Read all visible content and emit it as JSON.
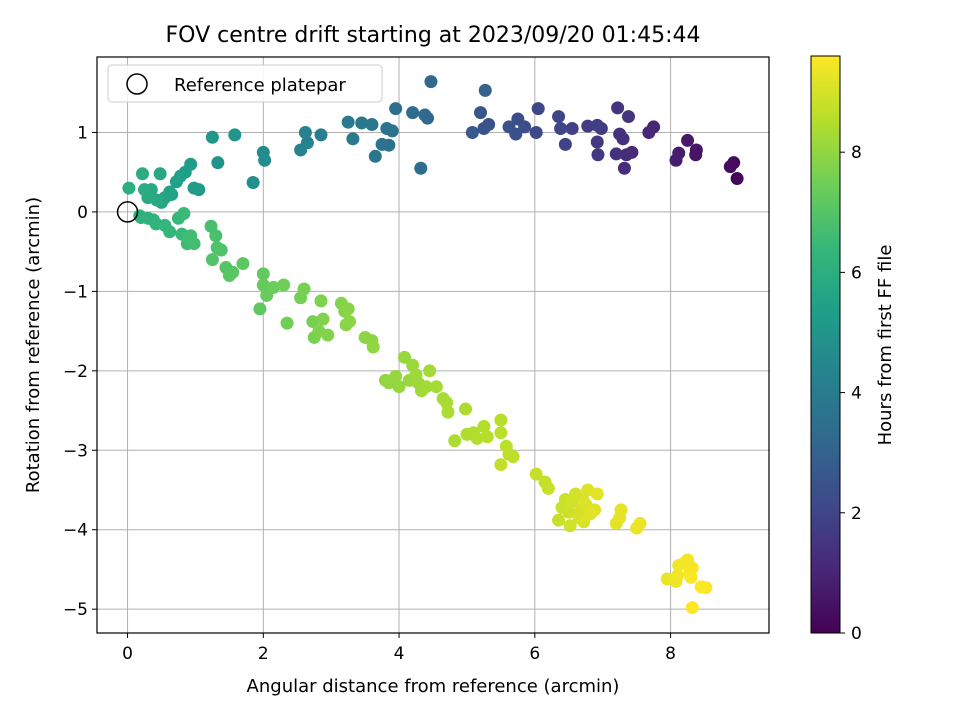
{
  "chart_data": {
    "type": "scatter",
    "title": "FOV centre drift starting at 2023/09/20 01:45:44",
    "xlabel": "Angular distance from reference (arcmin)",
    "ylabel": "Rotation from reference (arcmin)",
    "xlim": [
      -0.45,
      9.45
    ],
    "ylim": [
      -5.3,
      1.95
    ],
    "xticks": [
      0,
      2,
      4,
      6,
      8
    ],
    "yticks": [
      -5,
      -4,
      -3,
      -2,
      -1,
      0,
      1
    ],
    "grid": true,
    "legend": {
      "placement": "upper-left",
      "entries": [
        "Reference platepar"
      ]
    },
    "reference_point": {
      "x": 0,
      "y": 0
    },
    "colorbar": {
      "label": "Hours from first FF file",
      "colormap": "viridis",
      "range": [
        0,
        9.6
      ],
      "ticks": [
        0,
        2,
        4,
        6,
        8
      ]
    },
    "colormap_stops": [
      "#440154",
      "#482878",
      "#3e4989",
      "#31688e",
      "#26828e",
      "#1f9e89",
      "#35b779",
      "#6ece58",
      "#b5de2b",
      "#fde725"
    ],
    "series": [
      {
        "points": [
          [
            8.98,
            0.42,
            0.15
          ],
          [
            8.93,
            0.62,
            0.25
          ],
          [
            8.88,
            0.57,
            0.3
          ],
          [
            8.37,
            0.72,
            0.5
          ],
          [
            8.38,
            0.78,
            0.55
          ],
          [
            8.25,
            0.9,
            0.65
          ],
          [
            8.12,
            0.74,
            0.75
          ],
          [
            8.08,
            0.65,
            0.8
          ],
          [
            7.75,
            1.07,
            1.0
          ],
          [
            7.68,
            1.0,
            1.05
          ],
          [
            7.43,
            0.75,
            1.15
          ],
          [
            7.35,
            0.72,
            1.2
          ],
          [
            7.32,
            0.55,
            1.25
          ],
          [
            7.3,
            0.92,
            1.3
          ],
          [
            7.25,
            0.98,
            1.35
          ],
          [
            7.2,
            0.73,
            1.4
          ],
          [
            7.22,
            1.31,
            1.45
          ],
          [
            7.38,
            1.2,
            1.5
          ],
          [
            6.93,
            0.72,
            1.6
          ],
          [
            6.92,
            0.88,
            1.65
          ],
          [
            6.98,
            1.05,
            1.7
          ],
          [
            6.78,
            1.08,
            1.75
          ],
          [
            6.92,
            1.09,
            1.8
          ],
          [
            6.55,
            1.05,
            1.9
          ],
          [
            6.45,
            0.85,
            1.95
          ],
          [
            6.38,
            1.05,
            2.0
          ],
          [
            6.35,
            1.2,
            2.05
          ],
          [
            6.05,
            1.3,
            2.1
          ],
          [
            6.02,
            1.0,
            2.2
          ],
          [
            5.85,
            1.07,
            2.25
          ],
          [
            5.75,
            1.17,
            2.3
          ],
          [
            5.72,
            0.98,
            2.35
          ],
          [
            5.62,
            1.07,
            2.4
          ],
          [
            5.32,
            1.1,
            2.45
          ],
          [
            5.25,
            1.05,
            2.5
          ],
          [
            5.2,
            1.25,
            2.6
          ],
          [
            5.08,
            1.0,
            2.7
          ],
          [
            5.27,
            1.53,
            3.0
          ],
          [
            4.47,
            1.64,
            3.2
          ],
          [
            4.42,
            1.18,
            3.25
          ],
          [
            4.38,
            1.22,
            3.3
          ],
          [
            4.2,
            1.25,
            3.35
          ],
          [
            4.32,
            0.55,
            3.4
          ],
          [
            3.95,
            1.3,
            3.5
          ],
          [
            3.85,
            0.84,
            3.55
          ],
          [
            3.75,
            0.85,
            3.6
          ],
          [
            3.9,
            1.02,
            3.65
          ],
          [
            3.82,
            1.05,
            3.7
          ],
          [
            3.65,
            0.7,
            3.75
          ],
          [
            3.6,
            1.1,
            3.8
          ],
          [
            3.45,
            1.12,
            3.85
          ],
          [
            3.32,
            0.92,
            3.9
          ],
          [
            3.25,
            1.13,
            3.95
          ],
          [
            2.85,
            0.97,
            4.1
          ],
          [
            2.62,
            1.0,
            4.2
          ],
          [
            2.65,
            0.87,
            4.25
          ],
          [
            2.55,
            0.78,
            4.3
          ],
          [
            2.0,
            0.75,
            4.6
          ],
          [
            2.02,
            0.65,
            4.65
          ],
          [
            1.85,
            0.37,
            4.75
          ],
          [
            1.33,
            0.62,
            4.9
          ],
          [
            1.58,
            0.97,
            4.95
          ],
          [
            1.25,
            0.94,
            5.05
          ],
          [
            1.05,
            0.28,
            5.2
          ],
          [
            0.98,
            0.3,
            5.25
          ],
          [
            0.93,
            0.6,
            5.3
          ],
          [
            0.85,
            0.5,
            5.35
          ],
          [
            0.78,
            0.45,
            5.4
          ],
          [
            0.72,
            0.38,
            5.45
          ],
          [
            0.65,
            0.22,
            5.5
          ],
          [
            0.62,
            0.25,
            5.55
          ],
          [
            0.55,
            0.18,
            5.6
          ],
          [
            0.5,
            0.12,
            5.65
          ],
          [
            0.48,
            0.48,
            5.7
          ],
          [
            0.43,
            0.15,
            5.75
          ],
          [
            0.35,
            0.28,
            5.8
          ],
          [
            0.3,
            0.18,
            5.85
          ],
          [
            0.25,
            0.28,
            5.9
          ],
          [
            0.22,
            0.48,
            5.95
          ],
          [
            0.02,
            0.3,
            6.0
          ],
          [
            0.18,
            -0.05,
            6.05
          ],
          [
            0.2,
            -0.07,
            6.1
          ],
          [
            0.3,
            -0.08,
            6.15
          ],
          [
            0.38,
            -0.1,
            6.2
          ],
          [
            0.42,
            -0.15,
            6.25
          ],
          [
            0.55,
            -0.17,
            6.3
          ],
          [
            0.62,
            -0.25,
            6.35
          ],
          [
            0.75,
            -0.08,
            6.4
          ],
          [
            0.8,
            -0.28,
            6.45
          ],
          [
            0.83,
            -0.02,
            6.5
          ],
          [
            0.88,
            -0.4,
            6.55
          ],
          [
            0.9,
            -0.32,
            6.6
          ],
          [
            0.93,
            -0.3,
            6.65
          ],
          [
            0.98,
            -0.4,
            6.7
          ],
          [
            1.23,
            -0.18,
            6.75
          ],
          [
            1.3,
            -0.3,
            6.8
          ],
          [
            1.32,
            -0.45,
            6.85
          ],
          [
            1.38,
            -0.48,
            6.9
          ],
          [
            1.25,
            -0.6,
            6.95
          ],
          [
            1.45,
            -0.7,
            7.0
          ],
          [
            1.5,
            -0.8,
            7.05
          ],
          [
            1.55,
            -0.76,
            7.1
          ],
          [
            1.7,
            -0.65,
            7.15
          ],
          [
            1.95,
            -1.22,
            7.2
          ],
          [
            2.0,
            -0.78,
            7.25
          ],
          [
            2.0,
            -0.92,
            7.3
          ],
          [
            2.05,
            -1.05,
            7.35
          ],
          [
            2.15,
            -0.95,
            7.4
          ],
          [
            2.3,
            -0.92,
            7.45
          ],
          [
            2.35,
            -1.4,
            7.5
          ],
          [
            2.55,
            -1.08,
            7.55
          ],
          [
            2.6,
            -0.97,
            7.6
          ],
          [
            2.73,
            -1.38,
            7.62
          ],
          [
            2.75,
            -1.58,
            7.65
          ],
          [
            2.82,
            -1.5,
            7.7
          ],
          [
            2.85,
            -1.12,
            7.72
          ],
          [
            2.88,
            -1.35,
            7.75
          ],
          [
            2.95,
            -1.55,
            7.77
          ],
          [
            3.15,
            -1.15,
            7.8
          ],
          [
            3.2,
            -1.25,
            7.82
          ],
          [
            3.22,
            -1.42,
            7.85
          ],
          [
            3.25,
            -1.22,
            7.88
          ],
          [
            3.27,
            -1.38,
            7.9
          ],
          [
            3.5,
            -1.58,
            7.92
          ],
          [
            3.6,
            -1.62,
            7.95
          ],
          [
            3.62,
            -1.7,
            7.97
          ],
          [
            3.8,
            -2.12,
            8.0
          ],
          [
            3.85,
            -2.15,
            8.02
          ],
          [
            3.95,
            -2.07,
            8.05
          ],
          [
            4.0,
            -2.2,
            8.07
          ],
          [
            4.08,
            -1.83,
            8.1
          ],
          [
            4.15,
            -2.12,
            8.12
          ],
          [
            4.2,
            -1.93,
            8.15
          ],
          [
            4.25,
            -2.05,
            8.17
          ],
          [
            4.28,
            -2.15,
            8.2
          ],
          [
            4.33,
            -2.25,
            8.22
          ],
          [
            4.4,
            -2.2,
            8.25
          ],
          [
            4.45,
            -2.0,
            8.27
          ],
          [
            4.55,
            -2.2,
            8.3
          ],
          [
            4.65,
            -2.35,
            8.32
          ],
          [
            4.7,
            -2.4,
            8.35
          ],
          [
            4.72,
            -2.52,
            8.37
          ],
          [
            4.82,
            -2.88,
            8.4
          ],
          [
            4.98,
            -2.48,
            8.42
          ],
          [
            5.0,
            -2.8,
            8.45
          ],
          [
            5.1,
            -2.78,
            8.47
          ],
          [
            5.15,
            -2.85,
            8.5
          ],
          [
            5.25,
            -2.7,
            8.52
          ],
          [
            5.3,
            -2.83,
            8.55
          ],
          [
            5.5,
            -2.62,
            8.57
          ],
          [
            5.5,
            -2.78,
            8.6
          ],
          [
            5.58,
            -2.95,
            8.62
          ],
          [
            5.62,
            -3.05,
            8.65
          ],
          [
            5.68,
            -3.08,
            8.67
          ],
          [
            5.5,
            -3.18,
            8.7
          ],
          [
            6.02,
            -3.3,
            8.75
          ],
          [
            6.15,
            -3.4,
            8.77
          ],
          [
            6.2,
            -3.48,
            8.8
          ],
          [
            6.35,
            -3.88,
            8.82
          ],
          [
            6.4,
            -3.72,
            8.85
          ],
          [
            6.45,
            -3.62,
            8.87
          ],
          [
            6.5,
            -3.78,
            8.9
          ],
          [
            6.52,
            -3.95,
            8.92
          ],
          [
            6.55,
            -3.65,
            8.95
          ],
          [
            6.6,
            -3.55,
            8.97
          ],
          [
            6.65,
            -3.85,
            9.0
          ],
          [
            6.68,
            -3.75,
            9.02
          ],
          [
            6.7,
            -3.6,
            9.05
          ],
          [
            6.72,
            -3.9,
            9.07
          ],
          [
            6.75,
            -3.68,
            9.1
          ],
          [
            6.78,
            -3.5,
            9.12
          ],
          [
            6.82,
            -3.8,
            9.15
          ],
          [
            6.88,
            -3.75,
            9.17
          ],
          [
            6.92,
            -3.55,
            9.2
          ],
          [
            7.2,
            -3.92,
            9.22
          ],
          [
            7.25,
            -3.85,
            9.25
          ],
          [
            7.27,
            -3.75,
            9.27
          ],
          [
            7.5,
            -3.98,
            9.3
          ],
          [
            7.55,
            -3.92,
            9.32
          ],
          [
            7.95,
            -4.62,
            9.35
          ],
          [
            8.08,
            -4.65,
            9.37
          ],
          [
            8.1,
            -4.58,
            9.4
          ],
          [
            8.12,
            -4.45,
            9.42
          ],
          [
            8.2,
            -4.42,
            9.45
          ],
          [
            8.25,
            -4.38,
            9.47
          ],
          [
            8.28,
            -4.55,
            9.5
          ],
          [
            8.32,
            -4.48,
            9.52
          ],
          [
            8.3,
            -4.6,
            9.55
          ],
          [
            8.45,
            -4.72,
            9.57
          ],
          [
            8.52,
            -4.73,
            9.58
          ],
          [
            8.32,
            -4.98,
            9.6
          ]
        ]
      }
    ]
  }
}
